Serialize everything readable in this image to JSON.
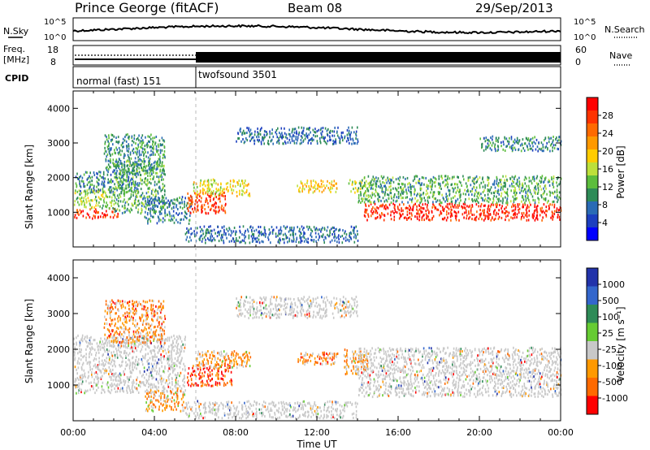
{
  "header": {
    "station": "Prince George (fitACF)",
    "beam": "Beam 08",
    "date": "29/Sep/2013"
  },
  "top_panels": {
    "nsky_label": "N.Sky",
    "nsearch_label": "N.Search",
    "freq_label_1": "Freq.",
    "freq_label_2": "[MHz]",
    "nave_label": "Nave",
    "cpid_label": "CPID",
    "nsky_ticks": [
      "10^5",
      "10^0"
    ],
    "nsearch_ticks": [
      "10^5",
      "10^0"
    ],
    "freq_ticks": [
      "18",
      "8"
    ],
    "nave_ticks": [
      "60",
      "0"
    ]
  },
  "cpid_segments": [
    {
      "name": "normal (fast) 151",
      "start_h": 0,
      "end_h": 6.0
    },
    {
      "name": "twofsound 3501",
      "start_h": 6.0,
      "end_h": 24
    }
  ],
  "power_colorbar": {
    "label": "Power [dB]",
    "ticks": [
      "28",
      "24",
      "20",
      "16",
      "12",
      "8",
      "4"
    ],
    "colors": [
      "#ff0000",
      "#ff3300",
      "#ff6a00",
      "#ff9900",
      "#ffcc00",
      "#bde03a",
      "#5cbd3c",
      "#2e8b57",
      "#2a6bb5",
      "#1c3fbf",
      "#0000ff"
    ]
  },
  "velocity_colorbar": {
    "label": "Velocity [m s⁻¹]",
    "ticks": [
      "1000",
      "500",
      "100",
      "25",
      "-25",
      "-100",
      "-500",
      "-1000"
    ],
    "colors": [
      "#2233aa",
      "#3366cc",
      "#2e8b57",
      "#66cc33",
      "#c8c8c8",
      "#ff9900",
      "#ff6a00",
      "#ff0000"
    ]
  },
  "chart_data": [
    {
      "type": "heatmap",
      "name": "power",
      "ylabel": "Slant Range [km]",
      "xlabel": "Time UT",
      "xlim": [
        0,
        24
      ],
      "ylim": [
        0,
        4500
      ],
      "xticks": [
        "00:00",
        "04:00",
        "08:00",
        "12:00",
        "16:00",
        "20:00",
        "00:00"
      ],
      "yticks": [
        "1000",
        "2000",
        "3000",
        "4000"
      ],
      "scatter_regions": [
        {
          "x0": 0.0,
          "x1": 2.2,
          "y0": 850,
          "y1": 1150,
          "level": 0.92
        },
        {
          "x0": 0.0,
          "x1": 2.0,
          "y0": 1150,
          "y1": 1700,
          "level": 0.45
        },
        {
          "x0": 0.1,
          "x1": 3.2,
          "y0": 1600,
          "y1": 2200,
          "level": 0.25
        },
        {
          "x0": 1.5,
          "x1": 4.5,
          "y0": 2200,
          "y1": 3300,
          "level": 0.3
        },
        {
          "x0": 2.0,
          "x1": 4.5,
          "y0": 1000,
          "y1": 2500,
          "level": 0.35
        },
        {
          "x0": 3.5,
          "x1": 5.8,
          "y0": 700,
          "y1": 1500,
          "level": 0.25
        },
        {
          "x0": 5.6,
          "x1": 7.5,
          "y0": 1000,
          "y1": 1600,
          "level": 0.9
        },
        {
          "x0": 5.9,
          "x1": 8.7,
          "y0": 1500,
          "y1": 2000,
          "level": 0.55
        },
        {
          "x0": 8.0,
          "x1": 14.0,
          "y0": 3000,
          "y1": 3500,
          "level": 0.2
        },
        {
          "x0": 11.0,
          "x1": 13.0,
          "y0": 1600,
          "y1": 1950,
          "level": 0.6
        },
        {
          "x0": 13.5,
          "x1": 14.5,
          "y0": 1600,
          "y1": 1950,
          "level": 0.5
        },
        {
          "x0": 5.5,
          "x1": 14.0,
          "y0": 150,
          "y1": 600,
          "level": 0.2
        },
        {
          "x0": 14.3,
          "x1": 24.0,
          "y0": 800,
          "y1": 1300,
          "level": 0.95
        },
        {
          "x0": 14.0,
          "x1": 24.0,
          "y0": 1300,
          "y1": 2100,
          "level": 0.35
        },
        {
          "x0": 20.0,
          "x1": 24.0,
          "y0": 2800,
          "y1": 3200,
          "level": 0.25
        }
      ]
    },
    {
      "type": "heatmap",
      "name": "velocity",
      "ylabel": "Slant Range [km]",
      "xlabel": "Time UT",
      "xlim": [
        0,
        24
      ],
      "ylim": [
        0,
        4500
      ],
      "xticks": [
        "00:00",
        "04:00",
        "08:00",
        "12:00",
        "16:00",
        "20:00",
        "00:00"
      ],
      "yticks": [
        "1000",
        "2000",
        "3000",
        "4000"
      ],
      "scatter_regions": [
        {
          "x0": 0.0,
          "x1": 5.5,
          "y0": 800,
          "y1": 2400,
          "level": 0.5
        },
        {
          "x0": 1.5,
          "x1": 4.5,
          "y0": 2200,
          "y1": 3400,
          "level": 0.75
        },
        {
          "x0": 5.6,
          "x1": 7.8,
          "y0": 1000,
          "y1": 1600,
          "level": 0.95
        },
        {
          "x0": 6.0,
          "x1": 8.7,
          "y0": 1500,
          "y1": 2000,
          "level": 0.7
        },
        {
          "x0": 8.0,
          "x1": 14.0,
          "y0": 2900,
          "y1": 3500,
          "level": 0.5
        },
        {
          "x0": 11.0,
          "x1": 13.0,
          "y0": 1600,
          "y1": 1950,
          "level": 0.75
        },
        {
          "x0": 13.3,
          "x1": 14.5,
          "y0": 1300,
          "y1": 2000,
          "level": 0.3
        },
        {
          "x0": 5.5,
          "x1": 14.0,
          "y0": 100,
          "y1": 600,
          "level": 0.5
        },
        {
          "x0": 14.0,
          "x1": 24.0,
          "y0": 700,
          "y1": 2100,
          "level": 0.5
        },
        {
          "x0": 3.5,
          "x1": 5.5,
          "y0": 300,
          "y1": 900,
          "level": 0.3
        }
      ]
    }
  ]
}
